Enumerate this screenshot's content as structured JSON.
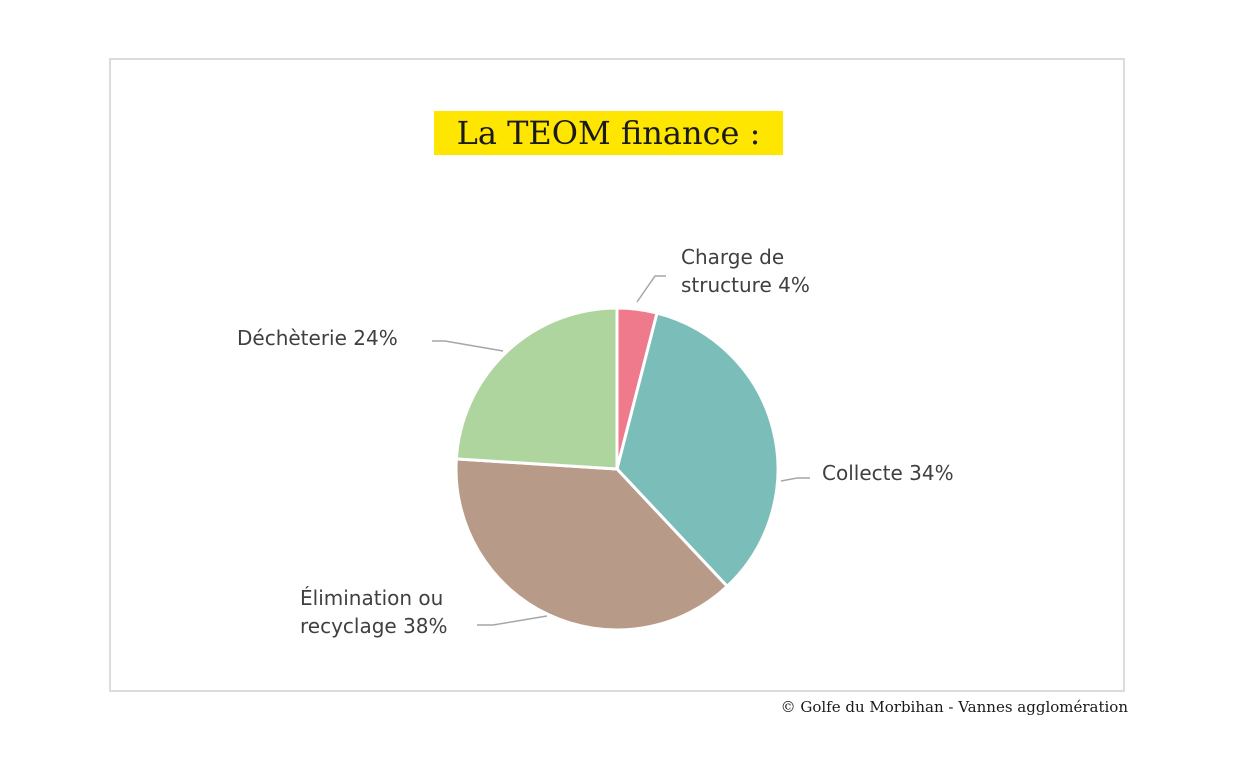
{
  "chart_data": {
    "type": "pie",
    "title": "La TEOM finance :",
    "categories": [
      "Charge de structure",
      "Collecte",
      "Élimination ou recyclage",
      "Déchèterie"
    ],
    "values": [
      4,
      34,
      38,
      24
    ],
    "unit": "%",
    "labels": [
      {
        "lines": [
          "Charge de",
          "structure  4%"
        ]
      },
      {
        "lines": [
          "Collecte  34%"
        ]
      },
      {
        "lines": [
          "Élimination ou",
          "recyclage  38%"
        ]
      },
      {
        "lines": [
          "Déchèterie  24%"
        ]
      }
    ],
    "colors": [
      "#ee7a8c",
      "#7bbdb9",
      "#b89a89",
      "#afd59f"
    ],
    "start_angle_deg": 0,
    "direction": "clockwise",
    "legend": "none"
  },
  "credit": "© Golfe du Morbihan - Vannes agglomération"
}
